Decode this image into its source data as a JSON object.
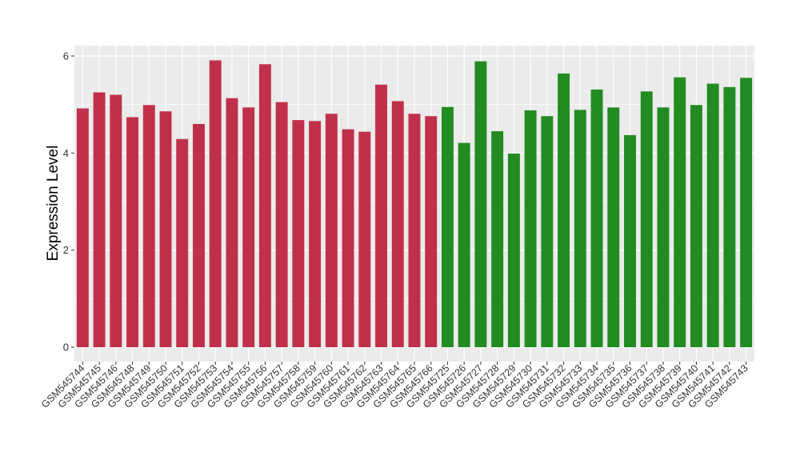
{
  "chart_data": {
    "type": "bar",
    "ylabel": "Expression Level",
    "xlabel": "",
    "ylim": [
      0,
      6.2
    ],
    "yticks": [
      0,
      2,
      4,
      6
    ],
    "grid": true,
    "legend": "none",
    "categories": [
      "GSM545744",
      "GSM545745",
      "GSM545746",
      "GSM545748",
      "GSM545749",
      "GSM545750",
      "GSM545751",
      "GSM545752",
      "GSM545753",
      "GSM545754",
      "GSM545755",
      "GSM545756",
      "GSM545757",
      "GSM545758",
      "GSM545759",
      "GSM545760",
      "GSM545761",
      "GSM545762",
      "GSM545763",
      "GSM545764",
      "GSM545765",
      "GSM545766",
      "GSM545725",
      "GSM545726",
      "GSM545727",
      "GSM545728",
      "GSM545729",
      "GSM545730",
      "GSM545731",
      "GSM545732",
      "GSM545733",
      "GSM545734",
      "GSM545735",
      "GSM545736",
      "GSM545737",
      "GSM545738",
      "GSM545739",
      "GSM545740",
      "GSM545741",
      "GSM545742",
      "GSM545743"
    ],
    "values": [
      4.92,
      5.25,
      5.2,
      4.74,
      4.99,
      4.86,
      4.29,
      4.6,
      5.91,
      5.13,
      4.94,
      5.83,
      5.05,
      4.68,
      4.66,
      4.81,
      4.49,
      4.44,
      5.41,
      5.07,
      4.81,
      4.76,
      4.95,
      4.21,
      5.89,
      4.45,
      3.99,
      4.88,
      4.76,
      5.64,
      4.89,
      5.31,
      4.94,
      4.37,
      5.27,
      4.94,
      5.56,
      4.99,
      5.43,
      5.36,
      5.55
    ],
    "bar_colors": [
      "#C0304A",
      "#C0304A",
      "#C0304A",
      "#C0304A",
      "#C0304A",
      "#C0304A",
      "#C0304A",
      "#C0304A",
      "#C0304A",
      "#C0304A",
      "#C0304A",
      "#C0304A",
      "#C0304A",
      "#C0304A",
      "#C0304A",
      "#C0304A",
      "#C0304A",
      "#C0304A",
      "#C0304A",
      "#C0304A",
      "#C0304A",
      "#C0304A",
      "#228B22",
      "#228B22",
      "#228B22",
      "#228B22",
      "#228B22",
      "#228B22",
      "#228B22",
      "#228B22",
      "#228B22",
      "#228B22",
      "#228B22",
      "#228B22",
      "#228B22",
      "#228B22",
      "#228B22",
      "#228B22",
      "#228B22",
      "#228B22",
      "#228B22"
    ],
    "panel_background": "#EBEBEB",
    "gridline_color": "#FFFFFF"
  }
}
